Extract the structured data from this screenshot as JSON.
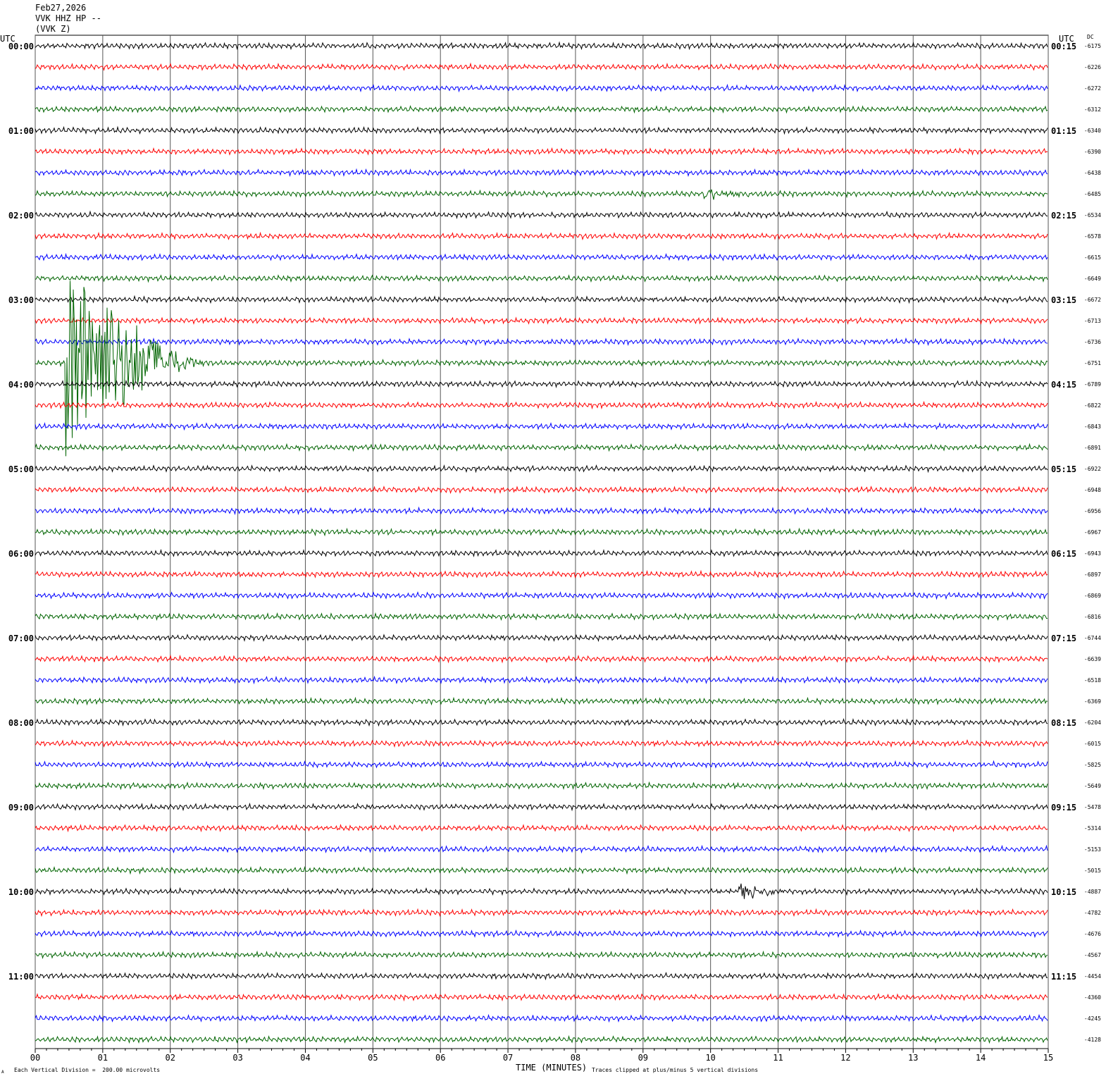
{
  "header": {
    "date": "Feb27,2026",
    "channel": "VVK HHZ HP --",
    "station": "(VVK Z)"
  },
  "left_axis_title": "UTC",
  "right_axis_title": "UTC",
  "dc_title": "DC",
  "footer": {
    "scale_note": "Each Vertical Division =  200.00 microvolts",
    "clip_note": "Traces clipped at plus/minus 5 vertical divisions",
    "corner_mark": "A"
  },
  "colors": {
    "trace_cycle": [
      "#000000",
      "#ff0000",
      "#0000ff",
      "#006400"
    ],
    "grid": "#000000",
    "background": "#ffffff"
  },
  "chart_data": {
    "type": "line",
    "title": "",
    "xlabel": "TIME (MINUTES)",
    "ylabel": "",
    "xlim": [
      0,
      15
    ],
    "x_ticks": [
      "00",
      "01",
      "02",
      "03",
      "04",
      "05",
      "06",
      "07",
      "08",
      "09",
      "10",
      "11",
      "12",
      "13",
      "14",
      "15"
    ],
    "minutes_per_line": 15,
    "left_labels": [
      "00:00",
      "01:00",
      "02:00",
      "03:00",
      "04:00",
      "05:00",
      "06:00",
      "07:00",
      "08:00",
      "09:00",
      "10:00",
      "11:00"
    ],
    "right_labels": [
      "00:15",
      "01:15",
      "02:15",
      "03:15",
      "04:15",
      "05:15",
      "06:15",
      "07:15",
      "08:15",
      "09:15",
      "10:15",
      "11:15"
    ],
    "dc_offsets": [
      -6175,
      -6226,
      -6272,
      -6312,
      -6340,
      -6390,
      -6438,
      -6485,
      -6534,
      -6578,
      -6615,
      -6649,
      -6672,
      -6713,
      -6736,
      -6751,
      -6789,
      -6822,
      -6843,
      -6891,
      -6922,
      -6948,
      -6956,
      -6967,
      -6943,
      -6897,
      -6869,
      -6816,
      -6744,
      -6639,
      -6518,
      -6369,
      -6204,
      -6015,
      -5825,
      -5649,
      -5478,
      -5314,
      -5153,
      -5015,
      -4887,
      -4782,
      -4676,
      -4567,
      -4454,
      -4360,
      -4245,
      -4128
    ],
    "events": [
      {
        "trace": 7,
        "start_min": 9.9,
        "end_min": 10.9,
        "amplitude": 0.3
      },
      {
        "trace": 15,
        "start_min": 0.45,
        "end_min": 2.6,
        "amplitude": 5.0
      },
      {
        "trace": 40,
        "start_min": 10.4,
        "end_min": 11.3,
        "amplitude": 0.4
      }
    ]
  }
}
